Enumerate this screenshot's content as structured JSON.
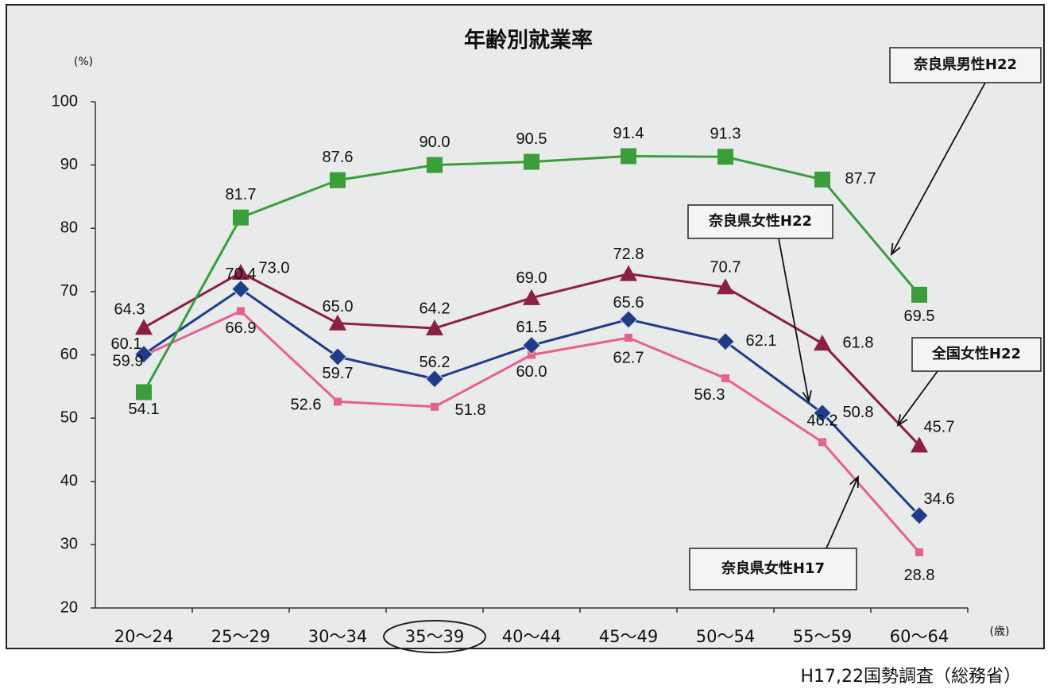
{
  "chart_data": {
    "type": "line",
    "title": "年齢別就業率",
    "y_unit": "(%)",
    "x_unit": "(歳)",
    "source": "H17,22国勢調査（総務省）",
    "categories": [
      "20〜24",
      "25〜29",
      "30〜34",
      "35〜39",
      "40〜44",
      "45〜49",
      "50〜54",
      "55〜59",
      "60〜64"
    ],
    "ylim": [
      20,
      100
    ],
    "yticks": [
      20,
      30,
      40,
      50,
      60,
      70,
      80,
      90,
      100
    ],
    "grid": false,
    "series": [
      {
        "name": "奈良県男性H22",
        "color": "#3a9e3a",
        "marker": "square",
        "values": [
          54.1,
          81.7,
          87.6,
          90.0,
          90.5,
          91.4,
          91.3,
          87.7,
          69.5
        ],
        "value_labels": [
          "54.1",
          "81.7",
          "87.6",
          "90.0",
          "90.5",
          "91.4",
          "91.3",
          "87.7",
          "69.5"
        ]
      },
      {
        "name": "全国女性H22",
        "color": "#8c1f45",
        "marker": "triangle",
        "values": [
          64.3,
          73.0,
          65.0,
          64.2,
          69.0,
          72.8,
          70.7,
          61.8,
          45.7
        ],
        "value_labels": [
          "64.3",
          "73.0",
          "65.0",
          "64.2",
          "69.0",
          "72.8",
          "70.7",
          "61.8",
          "45.7"
        ]
      },
      {
        "name": "奈良県女性H22",
        "color": "#1f3c8a",
        "marker": "diamond",
        "values": [
          60.1,
          70.4,
          59.7,
          56.2,
          61.5,
          65.6,
          62.1,
          50.8,
          34.6
        ],
        "value_labels": [
          "60.1",
          "70.4",
          "59.7",
          "56.2",
          "61.5",
          "65.6",
          "62.1",
          "50.8",
          "34.6"
        ]
      },
      {
        "name": "奈良県女性H17",
        "color": "#e8608c",
        "marker": "small-square",
        "values": [
          59.9,
          66.9,
          52.6,
          51.8,
          60.0,
          62.7,
          56.3,
          46.2,
          28.8
        ],
        "value_labels": [
          "59.9",
          "66.9",
          "52.6",
          "51.8",
          "60.0",
          "62.7",
          "56.3",
          "46.2",
          "28.8"
        ]
      }
    ]
  }
}
